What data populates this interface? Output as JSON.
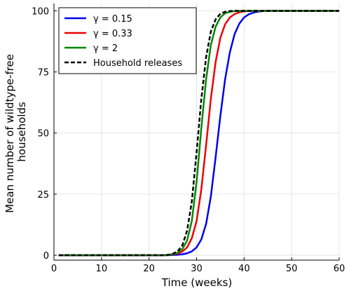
{
  "chart_data": {
    "type": "line",
    "xlabel": "Time (weeks)",
    "ylabel_lines": [
      "Mean number of wildtype-free",
      "households"
    ],
    "xlim": [
      0,
      60
    ],
    "ylim": [
      -2,
      103
    ],
    "xticks": [
      0,
      10,
      20,
      30,
      40,
      50,
      60
    ],
    "yticks": [
      0,
      25,
      50,
      75,
      100
    ],
    "grid": true,
    "legend_position": "top-left",
    "series": [
      {
        "name": "γ = 0.15",
        "color": "#0000ee",
        "dash": false,
        "x": [
          1,
          24,
          25,
          26,
          27,
          28,
          29,
          30,
          31,
          32,
          33,
          34,
          35,
          36,
          37,
          38,
          39,
          40,
          41,
          42,
          43,
          44,
          45,
          47,
          50,
          60
        ],
        "y": [
          0,
          0,
          0.1,
          0.2,
          0.4,
          0.8,
          1.6,
          3.2,
          6.5,
          12.8,
          24,
          40,
          57,
          72,
          83,
          90.5,
          94.8,
          97.3,
          98.6,
          99.3,
          99.7,
          99.9,
          100,
          100,
          100,
          100
        ]
      },
      {
        "name": "γ = 0.33",
        "color": "#ee0000",
        "dash": false,
        "x": [
          1,
          23,
          24,
          25,
          26,
          27,
          28,
          29,
          30,
          31,
          32,
          33,
          34,
          35,
          36,
          37,
          38,
          39,
          40,
          41,
          42,
          45,
          60
        ],
        "y": [
          0,
          0,
          0.1,
          0.3,
          0.7,
          1.5,
          3.2,
          7,
          14,
          27,
          45,
          64,
          79,
          89,
          94.5,
          97.3,
          98.7,
          99.4,
          99.8,
          99.9,
          100,
          100,
          100
        ]
      },
      {
        "name": "γ = 2",
        "color": "#008800",
        "dash": false,
        "x": [
          1,
          23,
          24,
          25,
          26,
          27,
          28,
          29,
          30,
          31,
          32,
          33,
          34,
          35,
          36,
          37,
          38,
          39,
          40,
          60
        ],
        "y": [
          0,
          0,
          0.1,
          0.4,
          1,
          2.5,
          6,
          14,
          30,
          52,
          72,
          86,
          93.5,
          97.3,
          99,
          99.6,
          99.9,
          100,
          100,
          100
        ]
      },
      {
        "name": "Household releases",
        "color": "#000000",
        "dash": true,
        "x": [
          1,
          23,
          24,
          25,
          26,
          27,
          28,
          29,
          30,
          31,
          32,
          33,
          34,
          35,
          36,
          37,
          38,
          60
        ],
        "y": [
          0,
          0,
          0.2,
          0.6,
          1.6,
          4,
          10,
          22,
          42,
          64,
          81,
          91.5,
          96.5,
          98.8,
          99.6,
          99.9,
          100,
          100
        ]
      }
    ]
  }
}
